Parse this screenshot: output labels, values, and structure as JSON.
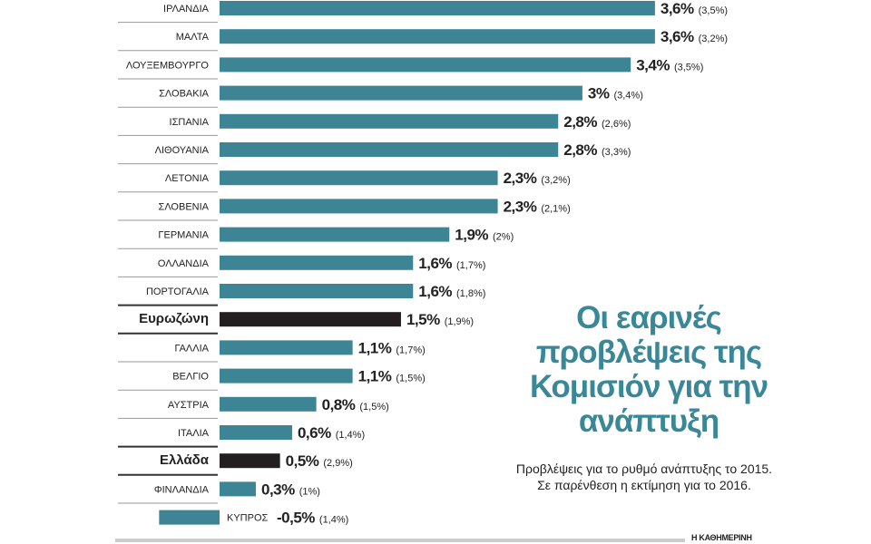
{
  "chart_data": {
    "type": "bar",
    "orientation": "horizontal",
    "title": "Οι εαρινές προβλέψεις της Κομισιόν για την ανάπτυξη",
    "subtitle": "Προβλέψεις για το ρυθμό ανάπτυξης το 2015. Σε παρένθεση η εκτίμηση για το 2016.",
    "source": "Η ΚΑΘΗΜΕΡΙΝΗ",
    "categories": [
      "ΙΡΛΑΝΔΙΑ",
      "ΜΑΛΤΑ",
      "ΛΟΥΞΕΜΒΟΥΡΓΟ",
      "ΣΛΟΒΑΚΙΑ",
      "ΙΣΠΑΝΙΑ",
      "ΛΙΘΟΥΑΝΙΑ",
      "ΛΕΤΟΝΙΑ",
      "ΣΛΟΒΕΝΙΑ",
      "ΓΕΡΜΑΝΙΑ",
      "ΟΛΛΑΝΔΙΑ",
      "ΠΟΡΤΟΓΑΛΙΑ",
      "Ευρωζώνη",
      "ΓΑΛΛΙΑ",
      "ΒΕΛΓΙΟ",
      "ΑΥΣΤΡΙΑ",
      "ΙΤΑΛΙΑ",
      "Ελλάδα",
      "ΦΙΝΛΑΝΔΙΑ",
      "ΚΥΠΡΟΣ"
    ],
    "series": [
      {
        "name": "2015",
        "values": [
          3.6,
          3.6,
          3.4,
          3,
          2.8,
          2.8,
          2.3,
          2.3,
          1.9,
          1.6,
          1.6,
          1.5,
          1.1,
          1.1,
          0.8,
          0.6,
          0.5,
          0.3,
          -0.5
        ]
      },
      {
        "name": "2016",
        "values": [
          3.5,
          3.2,
          3.5,
          3.4,
          2.6,
          3.3,
          3.2,
          2.1,
          2,
          1.7,
          1.8,
          1.9,
          1.7,
          1.5,
          1.5,
          1.4,
          2.9,
          1,
          1.4
        ]
      }
    ],
    "value_labels": [
      "3,6%",
      "3,6%",
      "3,4%",
      "3%",
      "2,8%",
      "2,8%",
      "2,3%",
      "2,3%",
      "1,9%",
      "1,6%",
      "1,6%",
      "1,5%",
      "1,1%",
      "1,1%",
      "0,8%",
      "0,6%",
      "0,5%",
      "0,3%",
      "-0,5%"
    ],
    "paren_labels": [
      "(3,5%)",
      "(3,2%)",
      "(3,5%)",
      "(3,4%)",
      "(2,6%)",
      "(3,3%)",
      "(3,2%)",
      "(2,1%)",
      "(2%)",
      "(1,7%)",
      "(1,8%)",
      "(1,9%)",
      "(1,7%)",
      "(1,5%)",
      "(1,5%)",
      "(1,4%)",
      "(2,9%)",
      "(1%)",
      "(1,4%)"
    ],
    "highlighted": [
      "Ευρωζώνη",
      "Ελλάδα"
    ],
    "colors": {
      "bar": "#3d8595",
      "highlight": "#231f20",
      "title": "#3a8797"
    },
    "xlim": [
      -0.5,
      3.6
    ],
    "grid": false
  }
}
